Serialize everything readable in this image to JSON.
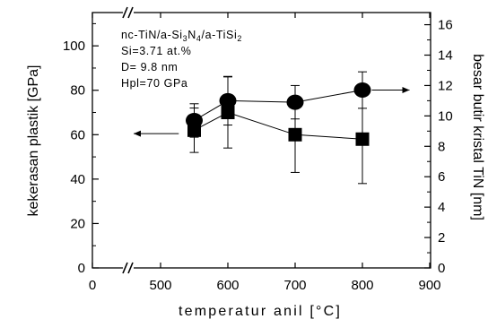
{
  "chart_data": {
    "type": "scatter",
    "x_title": "temperatur anil [°C]",
    "y_left_title": "kekerasan plastik [GPa]",
    "y_right_title": "besar butir kristal TiN [nm]",
    "x_ticks": [
      "0",
      "500",
      "600",
      "700",
      "800",
      "900"
    ],
    "x_break_between": [
      "0",
      "500"
    ],
    "y_left_ticks": [
      "0",
      "20",
      "40",
      "60",
      "80",
      "100"
    ],
    "y_right_ticks": [
      "0",
      "2",
      "4",
      "6",
      "8",
      "10",
      "12",
      "14",
      "16"
    ],
    "xlim": [
      450,
      900
    ],
    "y_left_lim": [
      0,
      115
    ],
    "y_right_lim": [
      0,
      16.8
    ],
    "annotation": {
      "line1": {
        "a": "nc-TiN/a-Si",
        "b": "3",
        "c": "N",
        "d": "4",
        "e": "/a-TiSi",
        "f": "2"
      },
      "line2": "Si=3.71 at.%",
      "line3": "D= 9.8 nm",
      "line4": "Hpl=70 GPa"
    },
    "series": [
      {
        "marker": "square",
        "axis": "left",
        "points": [
          {
            "x": 550,
            "y": 62,
            "err_low": 52,
            "err_high": 72
          },
          {
            "x": 600,
            "y": 70,
            "err_low": 54,
            "err_high": 86
          },
          {
            "x": 700,
            "y": 60,
            "err_low": 43,
            "err_high": 77
          },
          {
            "x": 800,
            "y": 58,
            "err_low": 38,
            "err_high": 78
          }
        ]
      },
      {
        "marker": "circle",
        "axis": "right",
        "points": [
          {
            "x": 550,
            "y": 9.7,
            "err_low": 8.6,
            "err_high": 10.8
          },
          {
            "x": 600,
            "y": 11.0,
            "err_low": 9.4,
            "err_high": 12.6
          },
          {
            "x": 700,
            "y": 10.9,
            "err_low": 9.8,
            "err_high": 12.0
          },
          {
            "x": 800,
            "y": 11.7,
            "err_low": 10.5,
            "err_high": 12.9
          }
        ]
      }
    ],
    "arrows": [
      {
        "series_marker": "square",
        "direction": "left",
        "y": 60.5,
        "x_from": 527,
        "x_to": 460
      },
      {
        "series_marker": "circle",
        "direction": "right",
        "y": 11.7,
        "x_from": 814,
        "x_to": 870
      }
    ]
  }
}
